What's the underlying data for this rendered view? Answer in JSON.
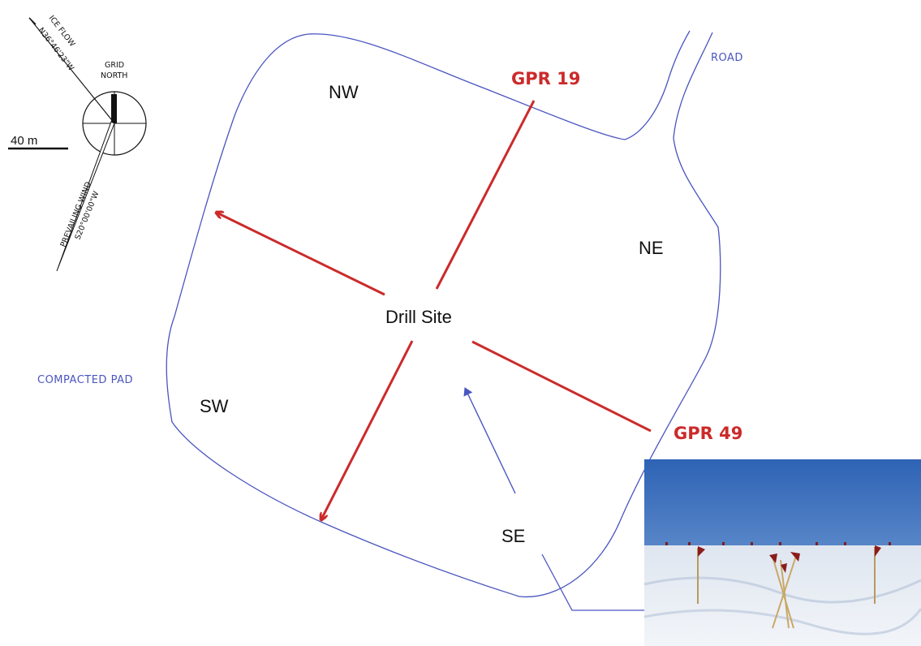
{
  "compass": {
    "grid_label_line1": "GRID",
    "grid_label_line2": "NORTH",
    "ice_flow_label": "ICE FLOW",
    "ice_flow_bearing": "N36°46'23\"W",
    "wind_label": "PREVAILING WIND",
    "wind_bearing": "S20°00'00\"W"
  },
  "scale_bar": {
    "label": "40 m"
  },
  "labels": {
    "road": "ROAD",
    "compacted_pad": "COMPACTED PAD",
    "drill_site": "Drill Site"
  },
  "quadrants": {
    "nw": "NW",
    "ne": "NE",
    "sw": "SW",
    "se": "SE"
  },
  "gpr_lines": {
    "gpr19": "GPR 19",
    "gpr49": "GPR 49"
  },
  "colors": {
    "outline": "#4a55c0",
    "gpr_line": "#cc2a2a",
    "text": "#111111",
    "sky_top": "#2f66b8",
    "sky_bottom": "#7fa9dc",
    "snow": "#e8eef6"
  },
  "photo": {
    "description_icon": "field-photo-flags"
  }
}
